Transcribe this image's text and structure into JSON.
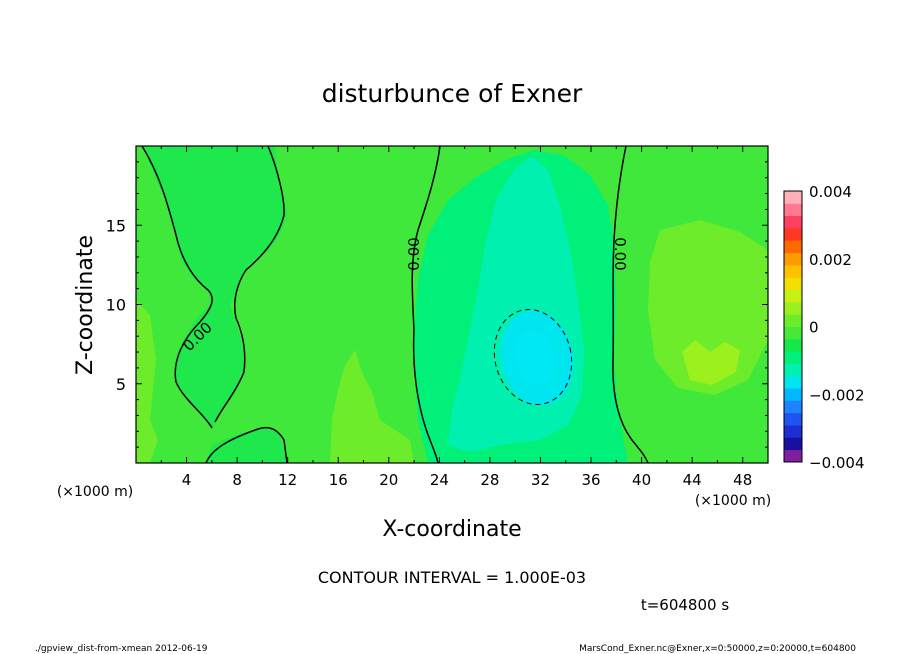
{
  "chart_data": {
    "type": "heatmap",
    "title": "disturbunce of Exner",
    "xlabel": "X-coordinate",
    "ylabel": "Z-coordinate",
    "xlim": [
      0,
      50
    ],
    "ylim": [
      0,
      20
    ],
    "x_ticks": [
      4,
      8,
      12,
      16,
      20,
      24,
      28,
      32,
      36,
      40,
      44,
      48
    ],
    "y_ticks": [
      5,
      10,
      15
    ],
    "x_unit_label": "(×1000 m)",
    "y_unit_label": "(×1000 m)",
    "colorbar": {
      "range": [
        -0.004,
        0.004
      ],
      "tick_labels": [
        "0.004",
        "0.002",
        "0",
        "−0.002",
        "−0.004"
      ],
      "tick_values": [
        0.004,
        0.002,
        0,
        -0.002,
        -0.004
      ],
      "colors": [
        "#7f1fa0",
        "#1a0f9e",
        "#1c2fd2",
        "#1e55f0",
        "#1f82ff",
        "#00b8ff",
        "#00e6ee",
        "#00f0b0",
        "#00f07a",
        "#14e84a",
        "#48e83a",
        "#6cec2a",
        "#9cf01e",
        "#c8f014",
        "#f0e000",
        "#ffc000",
        "#ff9a00",
        "#ff6a00",
        "#ff3820",
        "#ff4060",
        "#ff7a90",
        "#ffb0b8"
      ]
    },
    "contour_labels": [
      "0.00",
      "0.00",
      "0.00"
    ],
    "contour_interval_text": "CONTOUR INTERVAL = 1.000E-03",
    "time_text": "t=604800 s",
    "footer_left": "./gpview_dist-from-xmean  2012-06-19",
    "footer_right": "MarsCond_Exner.nc@Exner,x=0:50000,z=0:20000,t=604800",
    "regions": [
      {
        "name": "background",
        "value": 0.0003,
        "color": "#40e83c"
      },
      {
        "name": "left-column",
        "value": -0.0001,
        "color": "#1ee84c"
      },
      {
        "name": "negative-plume-outer",
        "value": -0.0004,
        "color": "#00f07a"
      },
      {
        "name": "negative-plume-mid",
        "value": -0.0007,
        "color": "#00f0b0"
      },
      {
        "name": "negative-plume-core",
        "value": -0.0011,
        "color": "#00e6ee"
      },
      {
        "name": "positive-right-area",
        "value": 0.0005,
        "color": "#6cec2a"
      },
      {
        "name": "positive-spot",
        "value": 0.0008,
        "color": "#9cf01e"
      }
    ]
  }
}
